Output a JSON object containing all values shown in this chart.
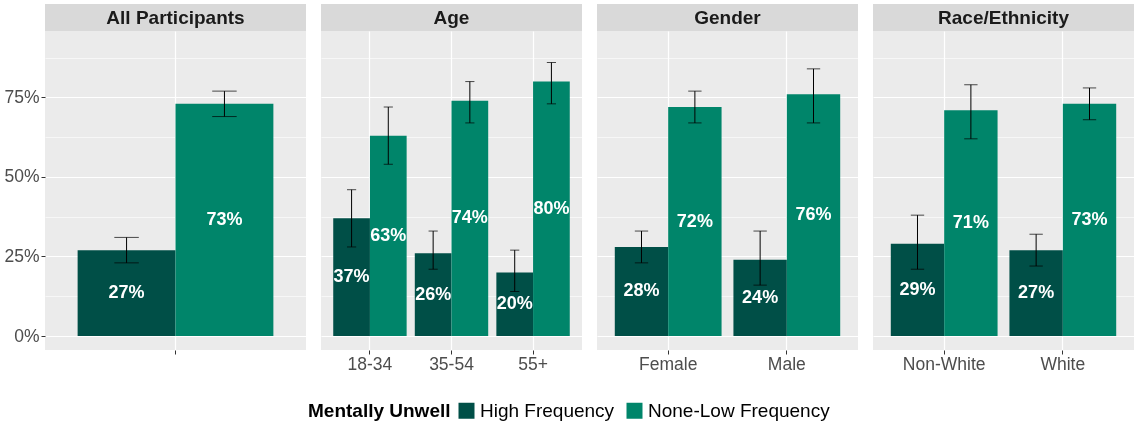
{
  "chart_data": [
    {
      "type": "bar",
      "title": "All Participants",
      "categories": [
        null
      ],
      "series": [
        {
          "name": "High Frequency",
          "color": "#004f47",
          "values": [
            27
          ],
          "errors": [
            [
              23,
              31
            ]
          ],
          "value_labels": [
            "27%"
          ]
        },
        {
          "name": "None-Low Frequency",
          "color": "#00856a",
          "values": [
            73
          ],
          "errors": [
            [
              69,
              77
            ]
          ],
          "value_labels": [
            "73%"
          ]
        }
      ],
      "ylim": [
        -4.4,
        95.9
      ],
      "yticks": [
        {
          "value": 0,
          "label": "0%"
        },
        {
          "value": 12.5,
          "label": null
        },
        {
          "value": 25,
          "label": "25%"
        },
        {
          "value": 37.5,
          "label": null
        },
        {
          "value": 50,
          "label": "50%"
        },
        {
          "value": 62.5,
          "label": null
        },
        {
          "value": 75,
          "label": "75%"
        },
        {
          "value": 87.5,
          "label": null
        }
      ],
      "grid": true,
      "tick_labels": "y",
      "legend": "bottom",
      "legend_title": "Mentally Unwell"
    },
    {
      "type": "bar",
      "title": "Age",
      "categories": [
        "18-34",
        "35-54",
        "55+"
      ],
      "series": [
        {
          "name": "High Frequency",
          "color": "#004f47",
          "values": [
            37,
            26,
            20
          ],
          "errors": [
            [
              28,
              46
            ],
            [
              21,
              33
            ],
            [
              14,
              27
            ]
          ],
          "value_labels": [
            "37%",
            "26%",
            "20%"
          ]
        },
        {
          "name": "None-Low Frequency",
          "color": "#00856a",
          "values": [
            63,
            74,
            80
          ],
          "errors": [
            [
              54,
              72
            ],
            [
              67,
              80
            ],
            [
              73,
              86
            ]
          ],
          "value_labels": [
            "63%",
            "74%",
            "80%"
          ]
        }
      ],
      "ylim": [
        -4.4,
        95.9
      ],
      "yticks": [
        0,
        {
          "value": 12.5,
          "label": null
        },
        25,
        {
          "value": 37.5,
          "label": null
        },
        50,
        {
          "value": 62.5,
          "label": null
        },
        75,
        {
          "value": 87.5,
          "label": null
        }
      ],
      "grid": true,
      "tick_labels": "x"
    },
    {
      "type": "bar",
      "title": "Gender",
      "categories": [
        "Female",
        "Male"
      ],
      "series": [
        {
          "name": "High Frequency",
          "color": "#004f47",
          "values": [
            28,
            24
          ],
          "errors": [
            [
              23,
              33
            ],
            [
              16,
              33
            ]
          ],
          "value_labels": [
            "28%",
            "24%"
          ]
        },
        {
          "name": "None-Low Frequency",
          "color": "#00856a",
          "values": [
            72,
            76
          ],
          "errors": [
            [
              67,
              77
            ],
            [
              67,
              84
            ]
          ],
          "value_labels": [
            "72%",
            "76%"
          ]
        }
      ],
      "ylim": [
        -4.4,
        95.9
      ],
      "yticks": [
        0,
        {
          "value": 12.5,
          "label": null
        },
        25,
        {
          "value": 37.5,
          "label": null
        },
        50,
        {
          "value": 62.5,
          "label": null
        },
        75,
        {
          "value": 87.5,
          "label": null
        }
      ],
      "grid": true,
      "tick_labels": "x"
    },
    {
      "type": "bar",
      "title": "Race/Ethnicity",
      "categories": [
        "Non-White",
        "White"
      ],
      "series": [
        {
          "name": "High Frequency",
          "color": "#004f47",
          "values": [
            29,
            27
          ],
          "errors": [
            [
              21,
              38
            ],
            [
              22,
              32
            ]
          ],
          "value_labels": [
            "29%",
            "27%"
          ]
        },
        {
          "name": "None-Low Frequency",
          "color": "#00856a",
          "values": [
            71,
            73
          ],
          "errors": [
            [
              62,
              79
            ],
            [
              68,
              78
            ]
          ],
          "value_labels": [
            "71%",
            "73%"
          ]
        }
      ],
      "ylim": [
        -4.4,
        95.9
      ],
      "yticks": [
        0,
        {
          "value": 12.5,
          "label": null
        },
        25,
        {
          "value": 37.5,
          "label": null
        },
        50,
        {
          "value": 62.5,
          "label": null
        },
        75,
        {
          "value": 87.5,
          "label": null
        }
      ],
      "grid": true,
      "tick_labels": "x"
    }
  ]
}
